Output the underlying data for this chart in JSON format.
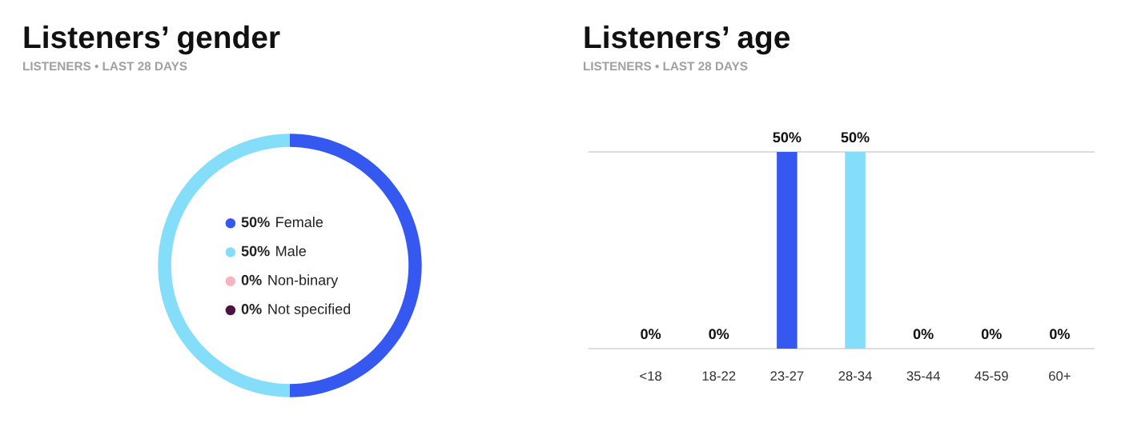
{
  "chart_data": [
    {
      "type": "donut",
      "title": "Listeners’ gender",
      "subtitle": "LISTENERS • LAST 28 DAYS",
      "categories": [
        "Female",
        "Male",
        "Non-binary",
        "Not specified"
      ],
      "values": [
        50,
        50,
        0,
        0
      ],
      "value_labels": [
        "50%",
        "50%",
        "0%",
        "0%"
      ],
      "colors": [
        "#3558f0",
        "#84def9",
        "#f7b4c0",
        "#4d1244"
      ],
      "legend": "center"
    },
    {
      "type": "bar",
      "title": "Listeners’ age",
      "subtitle": "LISTENERS • LAST 28 DAYS",
      "categories": [
        "<18",
        "18-22",
        "23-27",
        "28-34",
        "35-44",
        "45-59",
        "60+"
      ],
      "values": [
        0,
        0,
        50,
        50,
        0,
        0,
        0
      ],
      "value_labels": [
        "0%",
        "0%",
        "50%",
        "50%",
        "0%",
        "0%",
        "0%"
      ],
      "colors": [
        "#3558f0",
        "#3558f0",
        "#3558f0",
        "#84def9",
        "#3558f0",
        "#3558f0",
        "#3558f0"
      ],
      "tick_labels": "x"
    }
  ]
}
